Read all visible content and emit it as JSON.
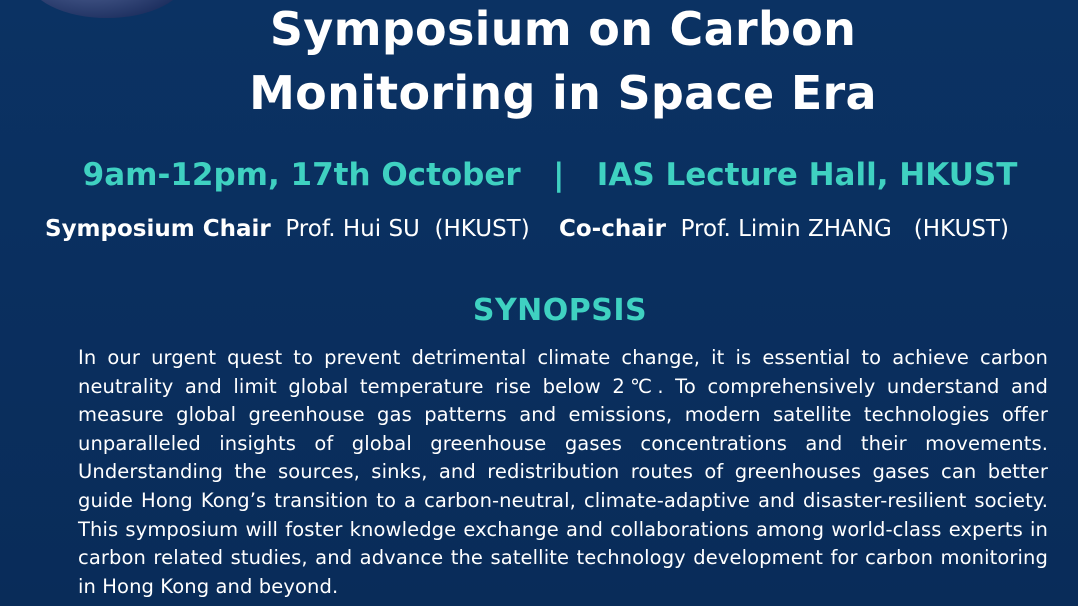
{
  "title": {
    "line1": "Symposium on Carbon",
    "line2": "Monitoring in Space Era"
  },
  "event": {
    "time": "9am-12pm, 17th October",
    "separator": "|",
    "venue": "IAS Lecture Hall, HKUST"
  },
  "chairs": {
    "chair_role": "Symposium Chair",
    "chair_name": "Prof. Hui SU",
    "chair_affiliation": "(HKUST)",
    "cochair_role": "Co-chair",
    "cochair_name": "Prof. Limin ZHANG",
    "cochair_affiliation": "(HKUST)"
  },
  "synopsis": {
    "heading": "SYNOPSIS",
    "body": "In our urgent quest to prevent detrimental climate change, it is essential to achieve carbon neutrality and limit global temperature rise below 2℃. To comprehensively understand and measure global greenhouse gas patterns and emissions, modern satellite technologies offer unparalleled insights of global greenhouse gases concentrations and their movements. Understanding the sources, sinks, and redistribution routes of greenhouses gases can better guide Hong Kong’s transition to a carbon-neutral, climate-adaptive and disaster-resilient society. This symposium will foster knowledge exchange and collaborations among world-class experts in carbon related studies, and advance the satellite technology development for carbon monitoring in Hong Kong and beyond."
  },
  "colors": {
    "background": "#0a2f5f",
    "accent": "#3fd1c1",
    "text": "#ffffff"
  }
}
